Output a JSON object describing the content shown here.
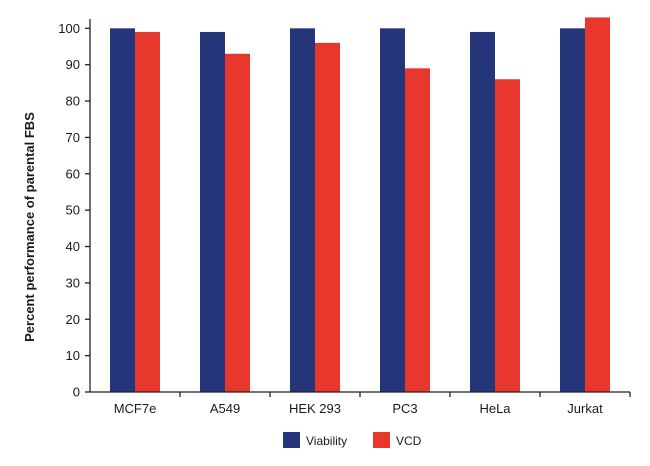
{
  "chart_data": {
    "type": "bar",
    "title": "",
    "xlabel": "",
    "ylabel": "Percent performance of parental FBS",
    "ylim": [
      0,
      100
    ],
    "yticks": [
      0,
      10,
      20,
      30,
      40,
      50,
      60,
      70,
      80,
      90,
      100
    ],
    "categories": [
      "MCF7e",
      "A549",
      "HEK 293",
      "PC3",
      "HeLa",
      "Jurkat"
    ],
    "series": [
      {
        "name": "Viability",
        "color": "#24357a",
        "values": [
          100,
          99,
          100,
          100,
          99,
          100
        ]
      },
      {
        "name": "VCD",
        "color": "#e8372c",
        "values": [
          99,
          93,
          96,
          89,
          86,
          103
        ]
      }
    ],
    "grid": false,
    "legend_position": "bottom-center"
  }
}
